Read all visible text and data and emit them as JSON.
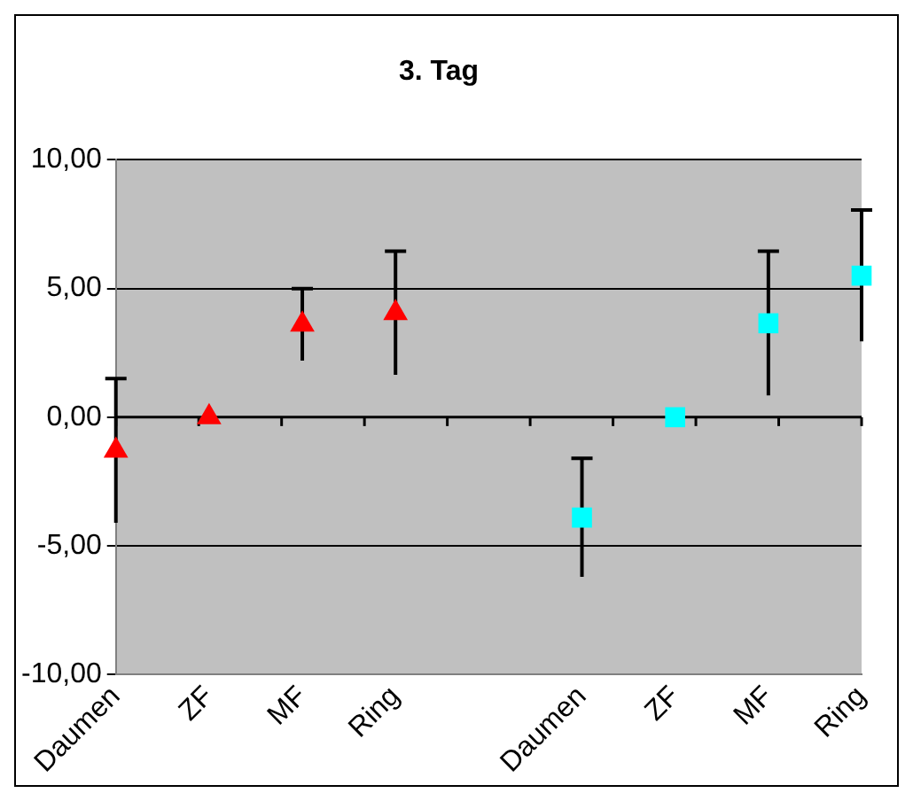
{
  "chart_data": {
    "type": "scatter",
    "title": "3. Tag",
    "categories": [
      "Daumen",
      "ZF",
      "MF",
      "Ring",
      null,
      "Daumen",
      "ZF",
      "MF",
      "Ring"
    ],
    "series": [
      {
        "color": "#ff0000",
        "marker": "triangle",
        "values": [
          -1.3,
          0,
          3.6,
          4.05,
          null,
          null,
          null,
          null,
          null
        ],
        "errors": [
          2.8,
          null,
          1.4,
          2.4,
          null,
          null,
          null,
          null,
          null
        ]
      },
      {
        "color": "#00ffff",
        "marker": "square",
        "values": [
          null,
          null,
          null,
          null,
          null,
          -3.9,
          0,
          3.65,
          5.5
        ],
        "errors": [
          null,
          null,
          null,
          null,
          null,
          2.3,
          null,
          2.8,
          2.55
        ]
      }
    ],
    "ylim": [
      -10,
      10
    ],
    "yticks": [
      {
        "value": -10,
        "label": "-10,00"
      },
      {
        "value": -5,
        "label": "-5,00"
      },
      {
        "value": 0,
        "label": "0,00"
      },
      {
        "value": 5,
        "label": "5,00"
      },
      {
        "value": 10,
        "label": "10,00"
      }
    ],
    "grid": "y",
    "legend": false
  }
}
